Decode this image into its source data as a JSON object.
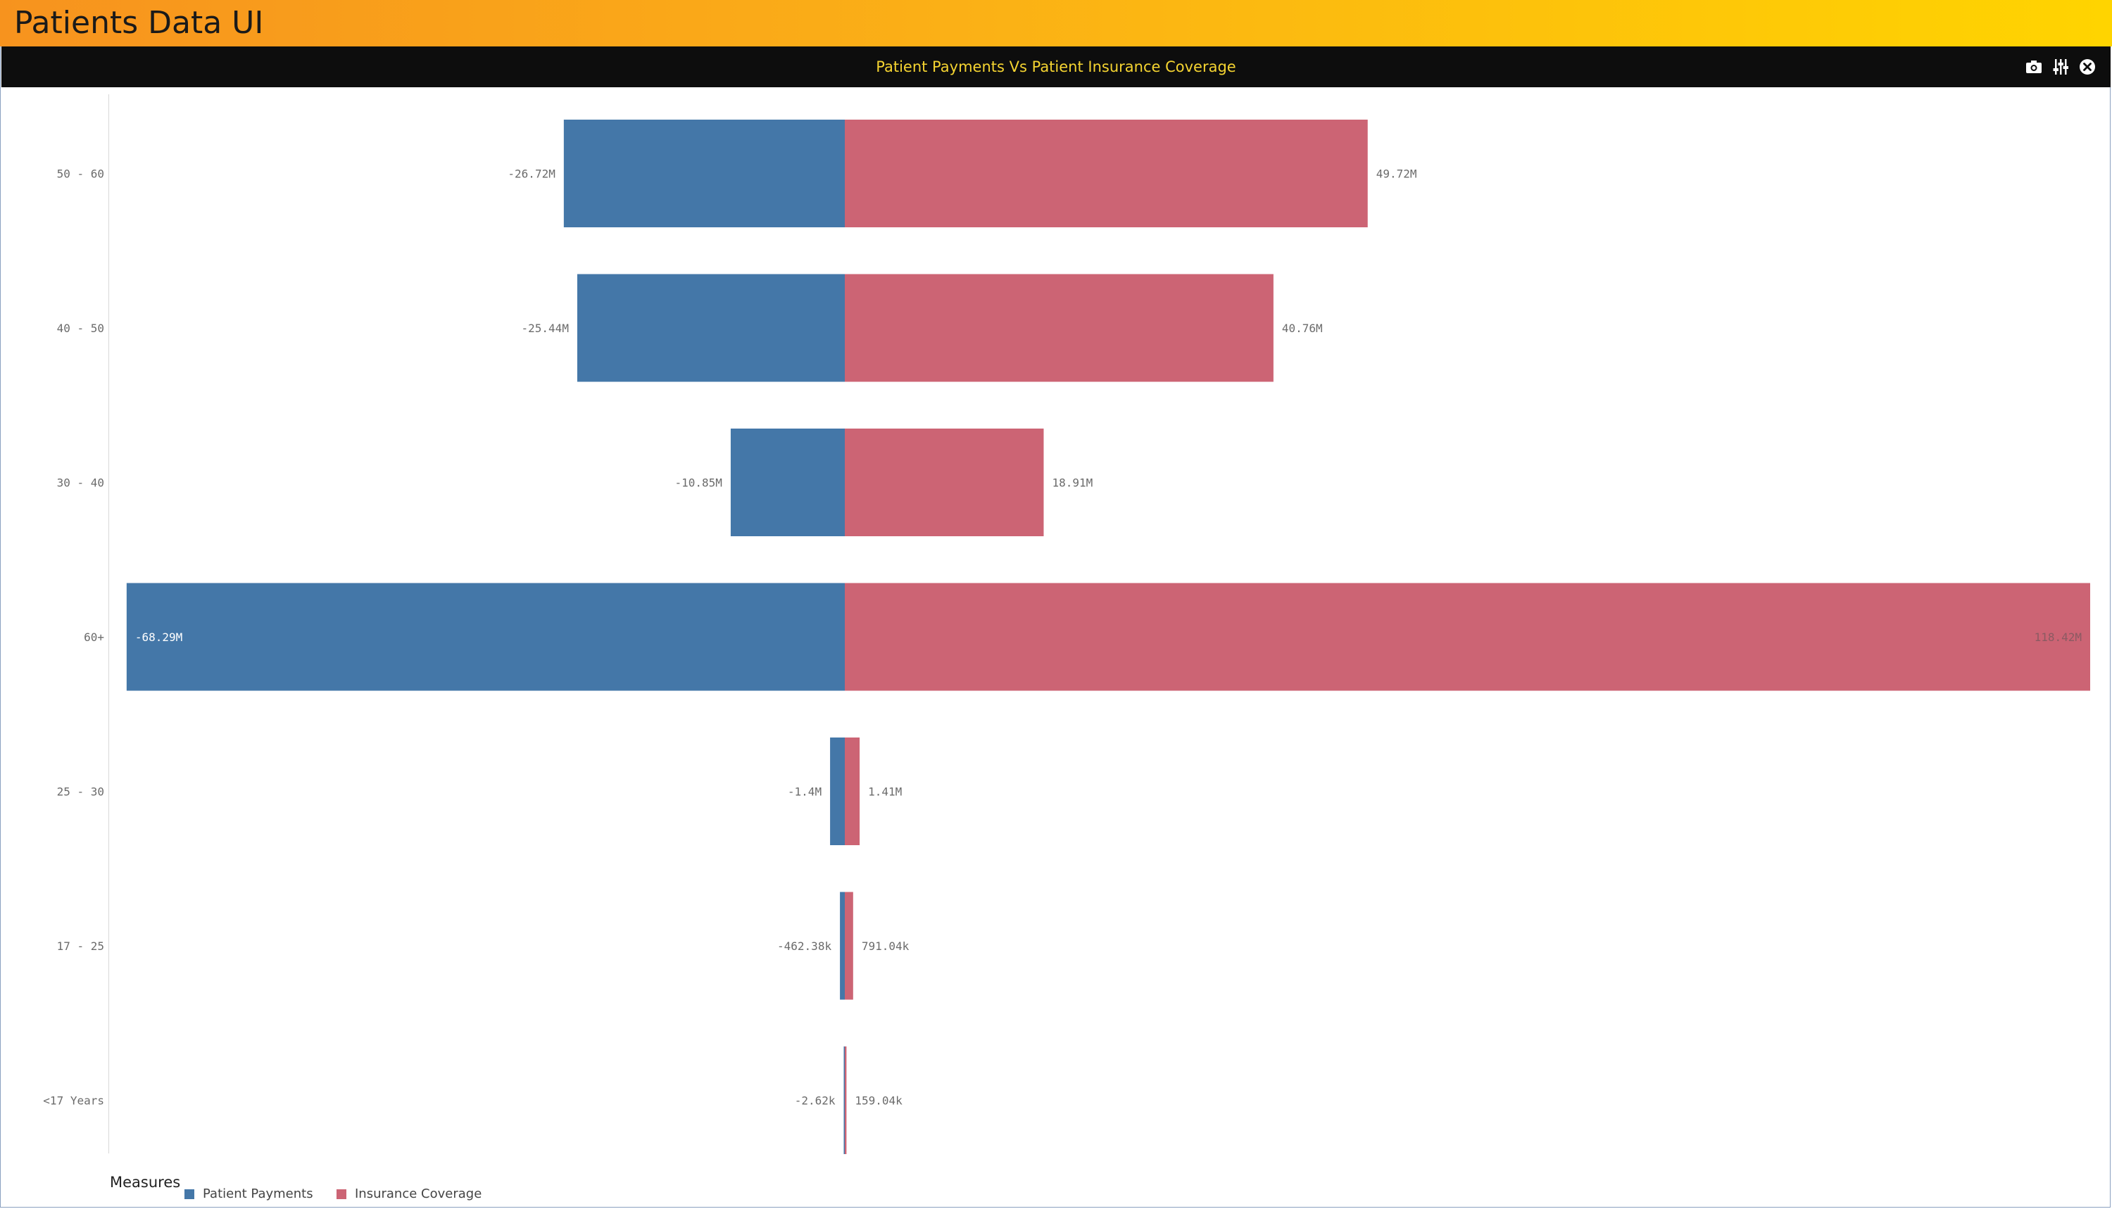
{
  "app": {
    "title": "Patients Data UI"
  },
  "panel": {
    "title": "Patient Payments Vs Patient Insurance Coverage",
    "tools": [
      {
        "name": "camera-icon"
      },
      {
        "name": "sliders-icon"
      },
      {
        "name": "close-icon"
      }
    ]
  },
  "colors": {
    "header_start": "#f7931e",
    "header_end": "#ffd400",
    "panel_bar": "#0d0d0d",
    "panel_title": "#f5d431",
    "patient_payments": "#4477a8",
    "insurance_coverage": "#cc6474"
  },
  "legend": {
    "title": "Measures",
    "items": [
      {
        "label": "Patient Payments",
        "color": "#4477a8"
      },
      {
        "label": "Insurance Coverage",
        "color": "#cc6474"
      }
    ]
  },
  "chart_data": {
    "type": "bar",
    "orientation": "horizontal",
    "stacking": "diverging",
    "categories": [
      "50 - 60",
      "40 - 50",
      "30 - 40",
      "60+",
      "25 - 30",
      "17 - 25",
      "<17 Years"
    ],
    "series": [
      {
        "name": "Patient Payments",
        "color": "#4477a8",
        "values": [
          -26720000,
          -25440000,
          -10850000,
          -68290000,
          -1400000,
          -462380,
          -2620
        ],
        "labels": [
          "-26.72M",
          "-25.44M",
          "-10.85M",
          "-68.29M",
          "-1.4M",
          "-462.38k",
          "-2.62k"
        ]
      },
      {
        "name": "Insurance Coverage",
        "color": "#cc6474",
        "values": [
          49720000,
          40760000,
          18910000,
          118420000,
          1410000,
          791040,
          159040
        ],
        "labels": [
          "49.72M",
          "40.76M",
          "18.91M",
          "118.42M",
          "1.41M",
          "791.04k",
          "159.04k"
        ]
      }
    ],
    "xlim": [
      -70000000,
      120000000
    ],
    "grid": false,
    "legend_position": "bottom-left"
  }
}
